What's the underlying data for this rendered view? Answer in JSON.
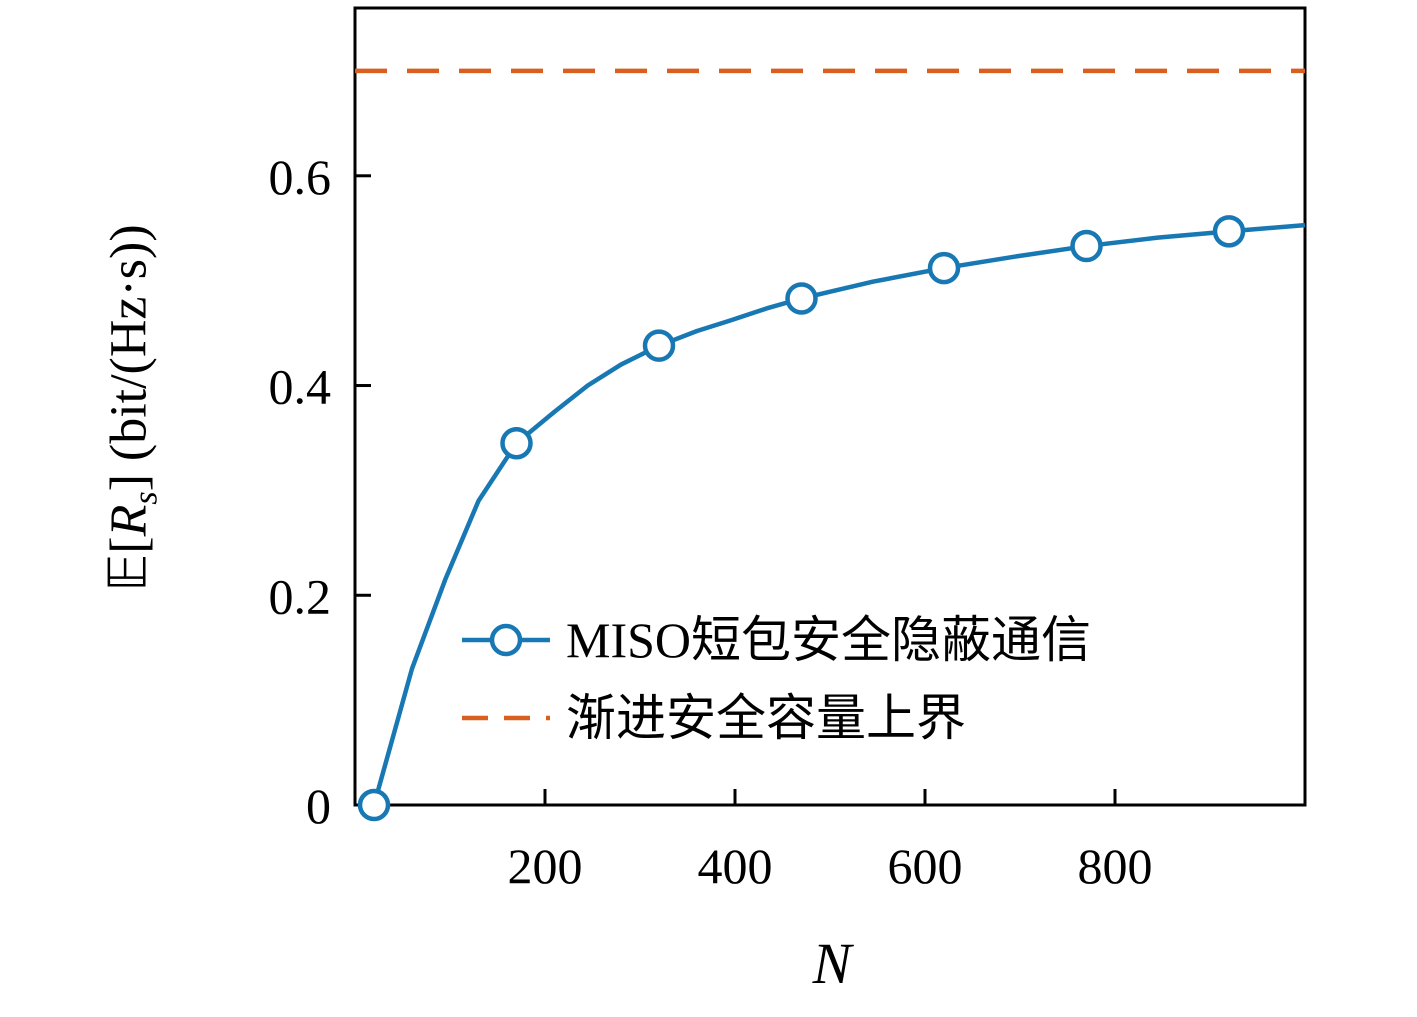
{
  "labels": {
    "y_prefix": "𝔼[",
    "y_var": "R",
    "y_sub": "s",
    "y_suffix": "] (bit/(Hz·s))"
  },
  "chart_data": {
    "type": "line",
    "title": "",
    "xlabel": "N",
    "ylabel": "𝔼[R_s] (bit/(Hz·s))",
    "xlim": [
      0,
      1000
    ],
    "ylim": [
      0,
      0.76
    ],
    "xticks": [
      200,
      400,
      600,
      800
    ],
    "yticks": [
      0,
      0.2,
      0.4,
      0.6
    ],
    "grid": false,
    "legend_position": "inside lower right, no frame",
    "series": [
      {
        "name": "MISO短包安全隐蔽通信",
        "color": "#1878b4",
        "style": "solid",
        "marker": "circle",
        "x": [
          20,
          60,
          95,
          130,
          170,
          210,
          245,
          280,
          320,
          360,
          395,
          435,
          470,
          545,
          620,
          695,
          770,
          845,
          920,
          1000
        ],
        "y": [
          0.0,
          0.13,
          0.215,
          0.29,
          0.345,
          0.375,
          0.4,
          0.42,
          0.438,
          0.452,
          0.462,
          0.474,
          0.483,
          0.499,
          0.512,
          0.523,
          0.533,
          0.541,
          0.547,
          0.553
        ],
        "marker_x": [
          20,
          170,
          320,
          470,
          620,
          770,
          920
        ],
        "marker_y": [
          0.0,
          0.345,
          0.438,
          0.483,
          0.512,
          0.533,
          0.547
        ]
      },
      {
        "name": "渐进安全容量上界",
        "color": "#d95f1e",
        "style": "dashed",
        "marker": "none",
        "x": [
          0,
          1000
        ],
        "y": [
          0.7,
          0.7
        ],
        "marker_x": [],
        "marker_y": []
      }
    ]
  }
}
